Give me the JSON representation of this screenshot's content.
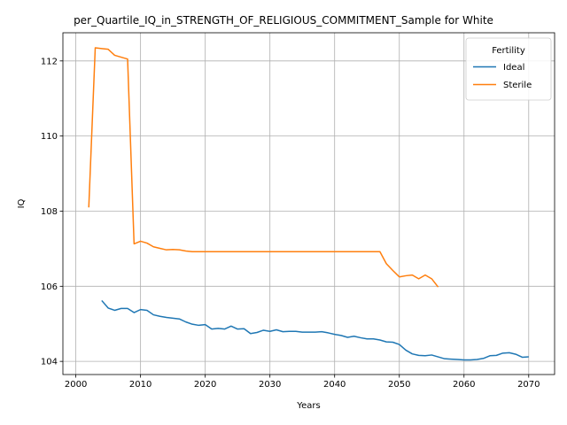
{
  "chart_data": {
    "type": "line",
    "title": "per_Quartile_IQ_in_STRENGTH_OF_RELIGIOUS_COMMITMENT_Sample for White",
    "xlabel": "Years",
    "ylabel": "IQ",
    "xlim": [
      1998,
      2074
    ],
    "ylim": [
      103.65,
      112.75
    ],
    "xticks": [
      2000,
      2010,
      2020,
      2030,
      2040,
      2050,
      2060,
      2070
    ],
    "yticks": [
      104,
      106,
      108,
      110,
      112
    ],
    "grid": true,
    "legend": {
      "title": "Fertility",
      "placement": "top-right"
    },
    "series": [
      {
        "name": "Ideal",
        "color": "#1f77b4",
        "x": [
          2004,
          2005,
          2006,
          2007,
          2008,
          2009,
          2010,
          2011,
          2012,
          2013,
          2014,
          2015,
          2016,
          2017,
          2018,
          2019,
          2020,
          2021,
          2022,
          2023,
          2024,
          2025,
          2026,
          2027,
          2028,
          2029,
          2030,
          2031,
          2032,
          2033,
          2034,
          2035,
          2036,
          2037,
          2038,
          2039,
          2040,
          2041,
          2042,
          2043,
          2044,
          2045,
          2046,
          2047,
          2048,
          2049,
          2050,
          2051,
          2052,
          2053,
          2054,
          2055,
          2056,
          2057,
          2058,
          2059,
          2060,
          2061,
          2062,
          2063,
          2064,
          2065,
          2066,
          2067,
          2068,
          2069,
          2070
        ],
        "y": [
          105.62,
          105.42,
          105.36,
          105.41,
          105.41,
          105.3,
          105.38,
          105.36,
          105.24,
          105.2,
          105.17,
          105.15,
          105.13,
          105.05,
          104.99,
          104.96,
          104.98,
          104.86,
          104.88,
          104.86,
          104.94,
          104.86,
          104.87,
          104.74,
          104.77,
          104.83,
          104.8,
          104.84,
          104.79,
          104.8,
          104.8,
          104.78,
          104.78,
          104.78,
          104.79,
          104.76,
          104.72,
          104.69,
          104.64,
          104.67,
          104.63,
          104.6,
          104.6,
          104.57,
          104.52,
          104.51,
          104.45,
          104.3,
          104.2,
          104.16,
          104.15,
          104.17,
          104.12,
          104.07,
          104.06,
          104.05,
          104.04,
          104.04,
          104.05,
          104.08,
          104.15,
          104.16,
          104.22,
          104.23,
          104.19,
          104.11,
          104.12
        ]
      },
      {
        "name": "Sterile",
        "color": "#ff7f0e",
        "x": [
          2002,
          2003,
          2004,
          2005,
          2006,
          2007,
          2008,
          2009,
          2010,
          2011,
          2012,
          2013,
          2014,
          2015,
          2016,
          2017,
          2018,
          2019,
          2020,
          2021,
          2022,
          2023,
          2024,
          2025,
          2026,
          2027,
          2028,
          2029,
          2030,
          2031,
          2032,
          2033,
          2034,
          2035,
          2036,
          2037,
          2038,
          2039,
          2040,
          2041,
          2042,
          2043,
          2044,
          2045,
          2046,
          2047,
          2048,
          2049,
          2050,
          2051,
          2052,
          2053,
          2054,
          2055,
          2056
        ],
        "y": [
          108.1,
          112.35,
          112.33,
          112.31,
          112.15,
          112.1,
          112.05,
          107.13,
          107.2,
          107.15,
          107.05,
          107.01,
          106.97,
          106.98,
          106.97,
          106.94,
          106.92,
          106.92,
          106.92,
          106.92,
          106.92,
          106.92,
          106.92,
          106.92,
          106.92,
          106.92,
          106.92,
          106.92,
          106.92,
          106.92,
          106.92,
          106.92,
          106.92,
          106.92,
          106.92,
          106.92,
          106.92,
          106.92,
          106.92,
          106.92,
          106.92,
          106.92,
          106.92,
          106.92,
          106.92,
          106.92,
          106.6,
          106.42,
          106.25,
          106.28,
          106.3,
          106.2,
          106.3,
          106.2,
          105.98
        ]
      }
    ]
  }
}
